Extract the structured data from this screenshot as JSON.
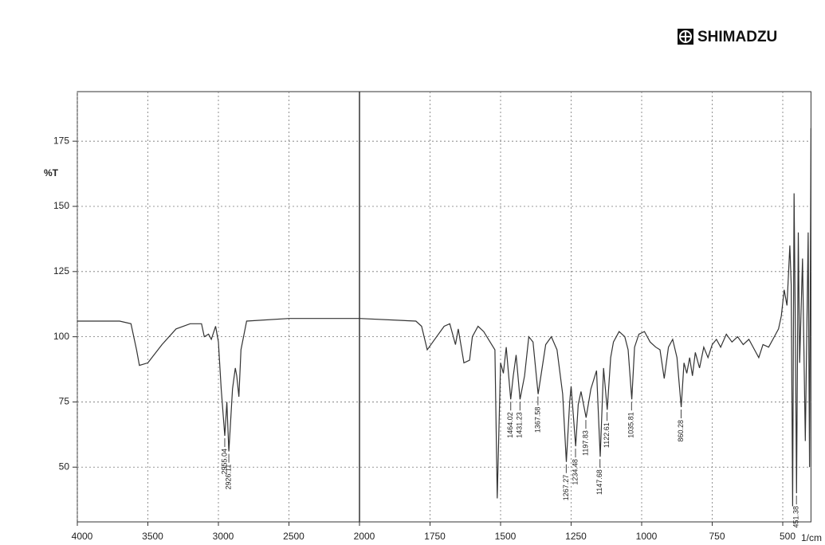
{
  "brand": "SHIMADZU",
  "chart_data": {
    "type": "line",
    "y_label": "%T",
    "x_label": "1/cm",
    "xlim": [
      4000,
      400
    ],
    "xticks": [
      4000,
      3500,
      3000,
      2500,
      2000,
      1750,
      1500,
      1250,
      1000,
      750,
      500
    ],
    "ylim": [
      29,
      194
    ],
    "yticks": [
      50,
      75,
      100,
      125,
      150,
      175
    ],
    "grid": true,
    "color": "#333333",
    "x": [
      4000,
      3700,
      3620,
      3580,
      3560,
      3500,
      3400,
      3300,
      3200,
      3120,
      3100,
      3070,
      3050,
      3020,
      3000,
      2980,
      2955,
      2940,
      2926,
      2900,
      2880,
      2870,
      2855,
      2840,
      2800,
      2500,
      2300,
      2000,
      1800,
      1780,
      1760,
      1740,
      1700,
      1680,
      1660,
      1650,
      1630,
      1610,
      1600,
      1580,
      1560,
      1520,
      1512,
      1500,
      1490,
      1480,
      1464,
      1455,
      1445,
      1431,
      1415,
      1400,
      1385,
      1367,
      1340,
      1320,
      1300,
      1280,
      1267,
      1255,
      1250,
      1234,
      1225,
      1215,
      1197,
      1180,
      1160,
      1147,
      1135,
      1122,
      1110,
      1100,
      1080,
      1060,
      1048,
      1035,
      1025,
      1010,
      990,
      970,
      950,
      935,
      920,
      905,
      890,
      875,
      860,
      850,
      840,
      830,
      820,
      810,
      795,
      780,
      765,
      750,
      735,
      720,
      700,
      680,
      660,
      640,
      620,
      600,
      585,
      570,
      550,
      530,
      515,
      505,
      495,
      485,
      475,
      470,
      465,
      460,
      455,
      451,
      445,
      440,
      430,
      420,
      410,
      405,
      400
    ],
    "values": [
      106,
      106,
      105,
      95,
      89,
      90,
      97,
      103,
      105,
      105,
      100,
      101,
      99,
      104,
      98,
      80,
      62,
      75,
      56,
      80,
      88,
      85,
      77,
      95,
      106,
      107,
      107,
      107,
      106,
      104,
      95,
      98,
      104,
      105,
      97,
      103,
      90,
      91,
      100,
      104,
      102,
      95,
      38,
      90,
      86,
      96,
      76,
      85,
      93,
      76,
      85,
      100,
      98,
      78,
      97,
      100,
      95,
      78,
      52,
      75,
      81,
      58,
      74,
      79,
      69,
      80,
      87,
      54,
      88,
      72,
      92,
      98,
      102,
      100,
      95,
      76,
      96,
      101,
      102,
      98,
      96,
      95,
      84,
      96,
      99,
      92,
      73,
      90,
      86,
      92,
      85,
      94,
      88,
      96,
      92,
      97,
      99,
      96,
      101,
      98,
      100,
      97,
      99,
      95,
      92,
      97,
      96,
      100,
      103,
      108,
      118,
      112,
      135,
      120,
      35,
      155,
      100,
      40,
      140,
      90,
      130,
      60,
      140,
      50,
      180
    ],
    "peaks": [
      {
        "x": 2955.04,
        "y": 62
      },
      {
        "x": 2926.11,
        "y": 56
      },
      {
        "x": 1464.02,
        "y": 76
      },
      {
        "x": 1431.23,
        "y": 76
      },
      {
        "x": 1367.58,
        "y": 78
      },
      {
        "x": 1267.27,
        "y": 52
      },
      {
        "x": 1234.48,
        "y": 58
      },
      {
        "x": 1197.83,
        "y": 69
      },
      {
        "x": 1147.68,
        "y": 54
      },
      {
        "x": 1122.61,
        "y": 72
      },
      {
        "x": 1035.81,
        "y": 76
      },
      {
        "x": 860.28,
        "y": 73
      },
      {
        "x": 451.38,
        "y": 40
      }
    ]
  }
}
